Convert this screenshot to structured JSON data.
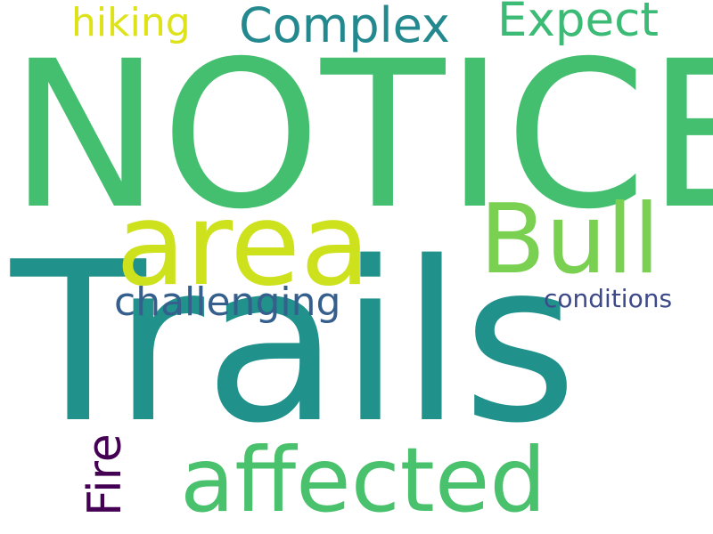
{
  "word_cloud": {
    "words": [
      {
        "id": "notice",
        "text": "NOTICE",
        "color": "#44bf70"
      },
      {
        "id": "trails",
        "text": "Trails",
        "color": "#21918c"
      },
      {
        "id": "area",
        "text": "area",
        "color": "#cde11d"
      },
      {
        "id": "bull",
        "text": "Bull",
        "color": "#7ad151"
      },
      {
        "id": "affected",
        "text": "affected",
        "color": "#4ac16d"
      },
      {
        "id": "complex",
        "text": "Complex",
        "color": "#23898e"
      },
      {
        "id": "expect",
        "text": "Expect",
        "color": "#3bbb75"
      },
      {
        "id": "hiking",
        "text": "hiking",
        "color": "#dde318"
      },
      {
        "id": "challenging",
        "text": "challenging",
        "color": "#355f8d"
      },
      {
        "id": "conditions",
        "text": "conditions",
        "color": "#3e4989"
      },
      {
        "id": "fire",
        "text": "Fire",
        "color": "#440154"
      }
    ]
  }
}
